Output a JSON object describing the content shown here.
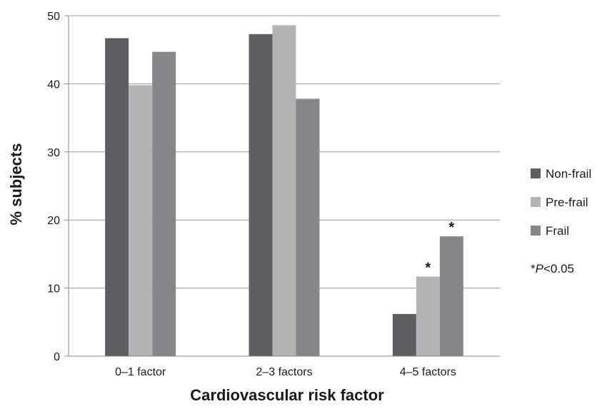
{
  "chart_data": {
    "type": "bar",
    "title": "",
    "xlabel": "Cardiovascular risk factor",
    "ylabel": "% subjects",
    "ylim": [
      0,
      50
    ],
    "yticks": [
      0,
      10,
      20,
      30,
      40,
      50
    ],
    "grid": true,
    "legend_position": "right",
    "categories": [
      "0–1 factor",
      "2–3 factors",
      "4–5 factors"
    ],
    "series": [
      {
        "name": "Non-frail",
        "values": [
          46.7,
          47.3,
          6.2
        ],
        "color": "#5e5e62",
        "significant": [
          false,
          false,
          false
        ]
      },
      {
        "name": "Pre-frail",
        "values": [
          39.8,
          48.6,
          11.7
        ],
        "color": "#b3b3b6",
        "significant": [
          false,
          false,
          true
        ]
      },
      {
        "name": "Frail",
        "values": [
          44.7,
          37.8,
          17.6
        ],
        "color": "#87878b",
        "significant": [
          false,
          false,
          true
        ]
      }
    ],
    "significance_marker": "*",
    "note": {
      "prefix": "*",
      "italic": "P",
      "suffix": "<0.05"
    }
  }
}
